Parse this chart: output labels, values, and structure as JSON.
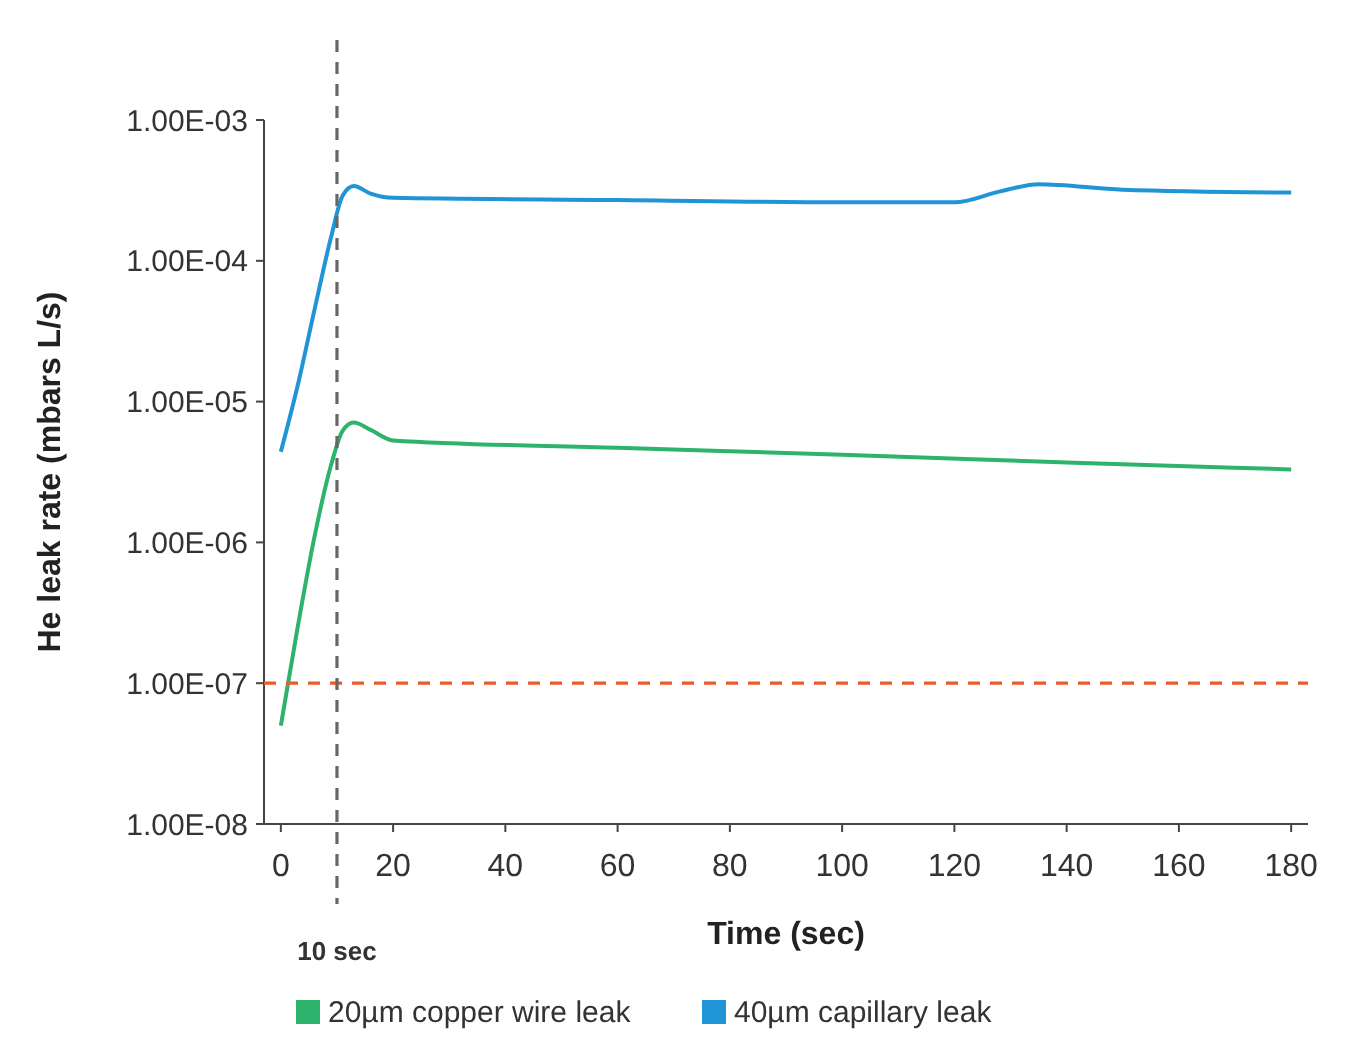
{
  "chart_data": {
    "type": "line",
    "xlabel": "Time (sec)",
    "ylabel": "He leak rate (mbars L/s)",
    "log": "y",
    "xlim": [
      -3,
      183
    ],
    "xticks": [
      0,
      20,
      40,
      60,
      80,
      100,
      120,
      140,
      160,
      180
    ],
    "ylim": [
      1e-08,
      0.001
    ],
    "yticks": [
      {
        "value": 1e-08,
        "label": "1.00E-08"
      },
      {
        "value": 1e-07,
        "label": "1.00E-07"
      },
      {
        "value": 1e-06,
        "label": "1.00E-06"
      },
      {
        "value": 1e-05,
        "label": "1.00E-05"
      },
      {
        "value": 0.0001,
        "label": "1.00E-04"
      },
      {
        "value": 0.001,
        "label": "1.00E-03"
      }
    ],
    "grid": false,
    "legend": "bottom",
    "marker": "none",
    "line_style": "solid",
    "series": [
      {
        "name": "20µm copper wire leak",
        "color": "#2db36b",
        "x": [
          0,
          3,
          6,
          9,
          11,
          13,
          16,
          20,
          60,
          100,
          140,
          180
        ],
        "values": [
          5e-08,
          2.5e-07,
          1.1e-06,
          3.6e-06,
          6.2e-06,
          7.1e-06,
          6.3e-06,
          5.3e-06,
          4.7e-06,
          4.2e-06,
          3.7e-06,
          3.3e-06
        ]
      },
      {
        "name": "40µm capillary leak",
        "color": "#1f95d6",
        "x": [
          0,
          3,
          6,
          9,
          11,
          13,
          16,
          20,
          60,
          100,
          120,
          128,
          135,
          150,
          180
        ],
        "values": [
          4.4e-06,
          1.3e-05,
          4.5e-05,
          0.00015,
          0.00029,
          0.00034,
          0.0003,
          0.00028,
          0.00027,
          0.00026,
          0.00026,
          0.00031,
          0.00035,
          0.00032,
          0.000305
        ]
      }
    ],
    "ref_lines": [
      {
        "axis": "y",
        "value": 1e-07,
        "color": "#ee5a2c",
        "line_style": "dashed"
      },
      {
        "axis": "x",
        "value": 10,
        "label": "10 sec",
        "color": "#666666",
        "line_style": "dashed"
      }
    ]
  }
}
